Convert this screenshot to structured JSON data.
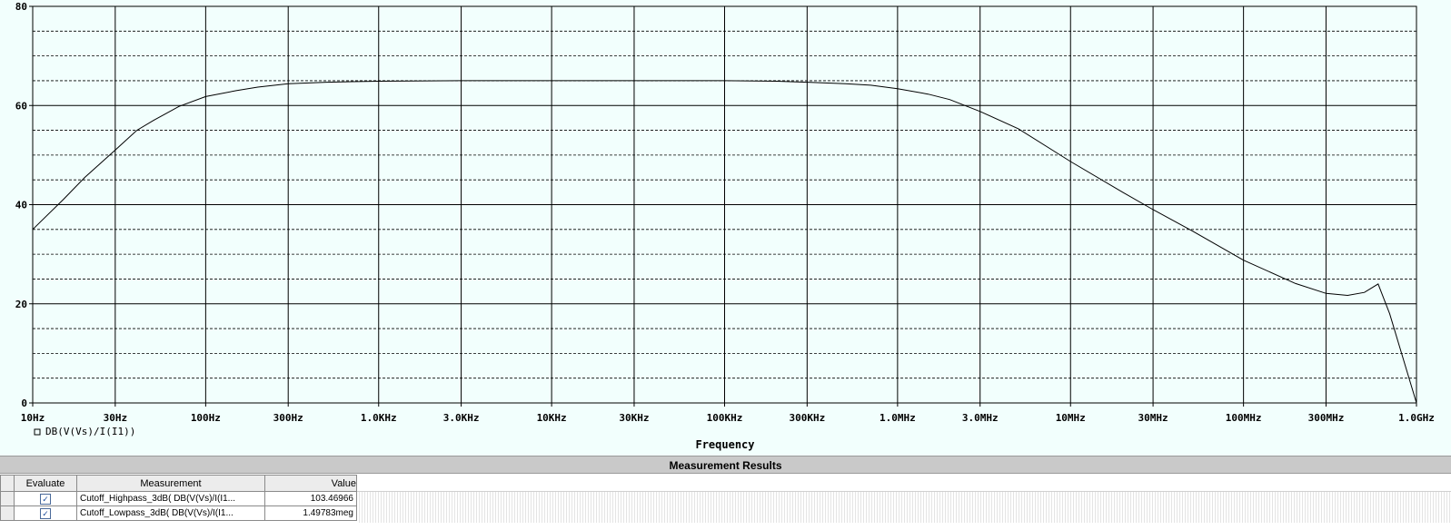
{
  "chart_data": {
    "type": "line",
    "title": "",
    "xlabel": "Frequency",
    "ylabel": "",
    "x_scale": "log",
    "xlim": [
      10,
      1000000000
    ],
    "ylim": [
      0,
      80
    ],
    "x_ticks": [
      {
        "value": 10,
        "label": "10Hz"
      },
      {
        "value": 30,
        "label": "30Hz"
      },
      {
        "value": 100,
        "label": "100Hz"
      },
      {
        "value": 300,
        "label": "300Hz"
      },
      {
        "value": 1000,
        "label": "1.0KHz"
      },
      {
        "value": 3000,
        "label": "3.0KHz"
      },
      {
        "value": 10000,
        "label": "10KHz"
      },
      {
        "value": 30000,
        "label": "30KHz"
      },
      {
        "value": 100000,
        "label": "100KHz"
      },
      {
        "value": 300000,
        "label": "300KHz"
      },
      {
        "value": 1000000,
        "label": "1.0MHz"
      },
      {
        "value": 3000000,
        "label": "3.0MHz"
      },
      {
        "value": 10000000,
        "label": "10MHz"
      },
      {
        "value": 30000000,
        "label": "30MHz"
      },
      {
        "value": 100000000,
        "label": "100MHz"
      },
      {
        "value": 300000000,
        "label": "300MHz"
      },
      {
        "value": 1000000000,
        "label": "1.0GHz"
      }
    ],
    "y_ticks": [
      {
        "value": 0,
        "label": "0"
      },
      {
        "value": 20,
        "label": "20"
      },
      {
        "value": 40,
        "label": "40"
      },
      {
        "value": 60,
        "label": "60"
      },
      {
        "value": 80,
        "label": "80"
      }
    ],
    "grid": true,
    "legend_position": "bottom-left",
    "colors": {
      "background": "#f2fffd",
      "line": "#000000",
      "grid": "#000000"
    },
    "series": [
      {
        "name": "DB(V(Vs)/I(I1))",
        "x": [
          10,
          15,
          20,
          30,
          40,
          50,
          70,
          100,
          150,
          200,
          300,
          500,
          700,
          1000,
          3000,
          10000,
          30000,
          100000,
          200000,
          300000,
          500000,
          700000,
          1000000,
          1500000,
          2000000,
          3000000,
          5000000,
          10000000,
          20000000,
          30000000,
          50000000,
          100000000,
          200000000,
          300000000,
          400000000,
          500000000,
          600000000,
          700000000,
          1000000000
        ],
        "values": [
          35,
          41,
          45.5,
          51,
          55,
          57,
          59.8,
          61.8,
          63,
          63.7,
          64.4,
          64.7,
          64.8,
          64.9,
          65,
          65,
          65,
          65,
          64.9,
          64.7,
          64.4,
          64.1,
          63.4,
          62.3,
          61.2,
          58.8,
          55.3,
          48.7,
          42.5,
          39,
          34.8,
          28.8,
          24.1,
          22.1,
          21.7,
          22.3,
          24,
          18,
          0
        ]
      }
    ]
  },
  "measurement_panel": {
    "title": "Measurement Results",
    "columns": [
      "Evaluate",
      "Measurement",
      "Value"
    ],
    "rows": [
      {
        "evaluate": "✓",
        "measurement": "Cutoff_Highpass_3dB( DB(V(Vs)/I(I1...",
        "value": "103.46966"
      },
      {
        "evaluate": "✓",
        "measurement": "Cutoff_Lowpass_3dB( DB(V(Vs)/I(I1...",
        "value": "1.49783meg"
      }
    ]
  }
}
